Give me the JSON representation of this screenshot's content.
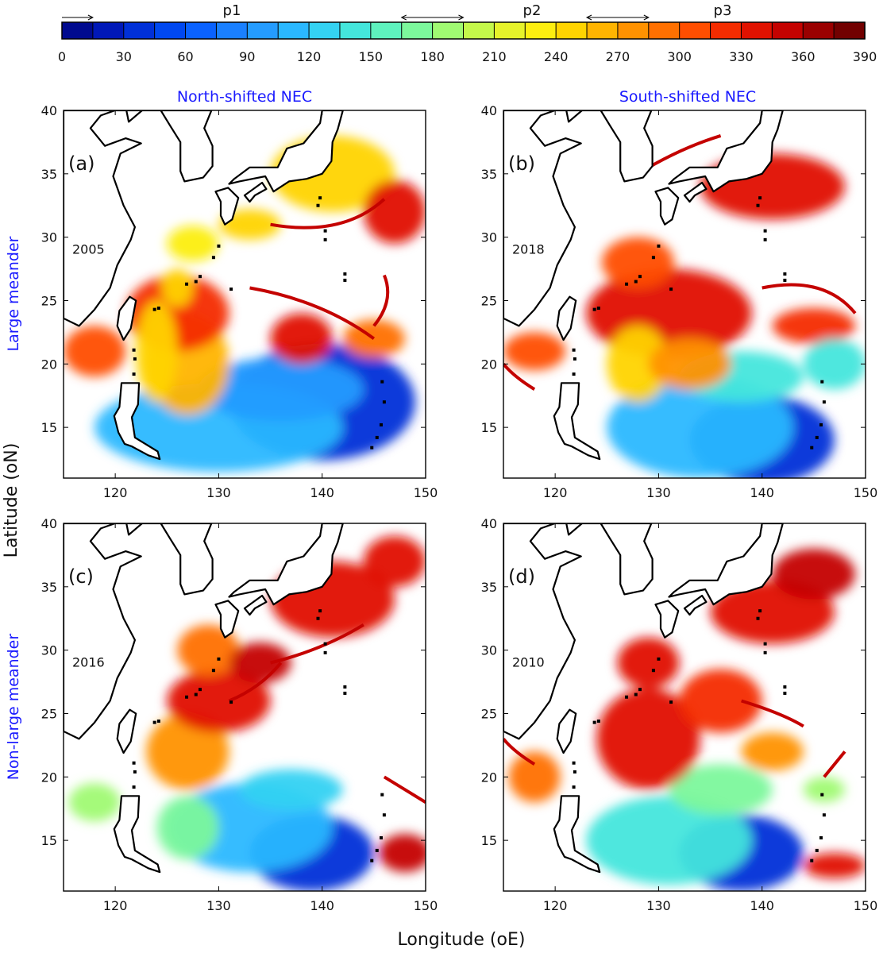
{
  "chart_data": {
    "type": "heatmap",
    "figure": {
      "xlabel": "Longitude (oE)",
      "ylabel": "Latitude (oN)",
      "column_titles": [
        "North-shifted NEC",
        "South-shifted NEC"
      ],
      "row_titles": [
        "Large meander",
        "Non-large meander"
      ]
    },
    "colorbar": {
      "range": [
        0,
        390
      ],
      "step": 15,
      "ticks": [
        "0",
        "30",
        "60",
        "90",
        "120",
        "150",
        "180",
        "210",
        "240",
        "270",
        "300",
        "330",
        "360",
        "390"
      ],
      "colors": [
        "#000a8f",
        "#0018b8",
        "#0030d8",
        "#0048f0",
        "#0a62ff",
        "#1a80ff",
        "#249cff",
        "#2ab8ff",
        "#34d2f2",
        "#44e6dc",
        "#5ef2be",
        "#7cf89c",
        "#a0fa72",
        "#c4f84a",
        "#e6f22a",
        "#fcee10",
        "#ffd400",
        "#ffb400",
        "#ff9200",
        "#ff7000",
        "#ff4e00",
        "#f42c00",
        "#e01200",
        "#c40200",
        "#9a0000",
        "#720000"
      ],
      "periods": [
        {
          "label": "p1",
          "range": [
            0,
            15
          ]
        },
        {
          "label": "p2",
          "range": [
            165,
            195
          ]
        },
        {
          "label": "p3",
          "range": [
            255,
            285
          ]
        }
      ]
    },
    "x_axis": {
      "range": [
        115,
        150
      ],
      "ticks": [
        "120",
        "130",
        "140",
        "150"
      ]
    },
    "y_axis": {
      "range": [
        11,
        40
      ],
      "ticks": [
        "15",
        "20",
        "25",
        "30",
        "35",
        "40"
      ]
    },
    "panels": [
      {
        "letter": "(a)",
        "year": "2005",
        "row": "Large meander",
        "column": "North-shifted NEC",
        "approx_value_by_region": {
          "subtropical_interior_12_20N": 110,
          "kuroshio_path": 240,
          "east_of_japan": 290,
          "outer_filaments": 345
        }
      },
      {
        "letter": "(b)",
        "year": "2018",
        "row": "Large meander",
        "column": "South-shifted NEC",
        "approx_value_by_region": {
          "subtropical_interior_12_20N": 125,
          "kuroshio_path": 300,
          "east_of_japan": 330,
          "outer_filaments": 350
        }
      },
      {
        "letter": "(c)",
        "year": "2016",
        "row": "Non-large meander",
        "column": "North-shifted NEC",
        "approx_value_by_region": {
          "subtropical_interior_12_20N": 105,
          "kuroshio_path": 260,
          "east_of_japan": 320,
          "outer_filaments": 345
        }
      },
      {
        "letter": "(d)",
        "year": "2010",
        "row": "Non-large meander",
        "column": "South-shifted NEC",
        "approx_value_by_region": {
          "subtropical_interior_12_20N": 140,
          "kuroshio_path": 320,
          "east_of_japan": 335,
          "outer_filaments": 350
        }
      }
    ]
  }
}
